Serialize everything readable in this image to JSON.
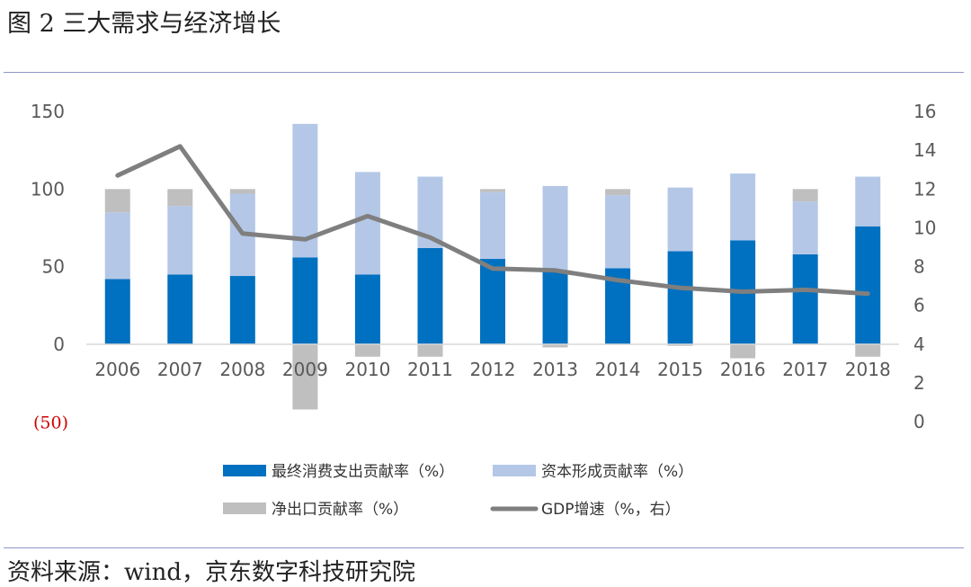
{
  "title": "图 2  三大需求与经济增长",
  "source": "资料来源：wind，京东数字科技研究院",
  "chart_data": {
    "type": "bar",
    "stacked": true,
    "categories": [
      "2006",
      "2007",
      "2008",
      "2009",
      "2010",
      "2011",
      "2012",
      "2013",
      "2014",
      "2015",
      "2016",
      "2017",
      "2018"
    ],
    "y_left": {
      "ticks": [
        "150",
        "100",
        "50",
        "0"
      ],
      "extra_label": "(50)",
      "range": [
        -50,
        150
      ]
    },
    "y_right": {
      "ticks": [
        "16",
        "14",
        "12",
        "10",
        "8",
        "6",
        "4",
        "2",
        "0"
      ],
      "range": [
        0,
        16
      ]
    },
    "series": [
      {
        "name": "最终消费支出贡献率（%）",
        "kind": "bar",
        "color": "#0070c0",
        "values": [
          42,
          45,
          44,
          56,
          45,
          62,
          55,
          47,
          49,
          60,
          67,
          58,
          76
        ]
      },
      {
        "name": "资本形成贡献率（%）",
        "kind": "bar",
        "color": "#b4c7e7",
        "values": [
          43,
          44,
          53,
          86,
          66,
          46,
          43,
          55,
          47,
          41,
          43,
          34,
          32
        ]
      },
      {
        "name": "净出口贡献率（%）",
        "kind": "bar",
        "color": "#bfbfbf",
        "values": [
          15,
          11,
          3,
          -42,
          -8,
          -8,
          2,
          -2,
          4,
          -1,
          -9,
          8,
          -8
        ]
      },
      {
        "name": "GDP增速（%，右）",
        "kind": "line",
        "axis": "right",
        "color": "#7f7f7f",
        "values": [
          12.7,
          14.2,
          9.7,
          9.4,
          10.6,
          9.5,
          7.9,
          7.8,
          7.3,
          6.9,
          6.7,
          6.8,
          6.6
        ]
      }
    ]
  }
}
